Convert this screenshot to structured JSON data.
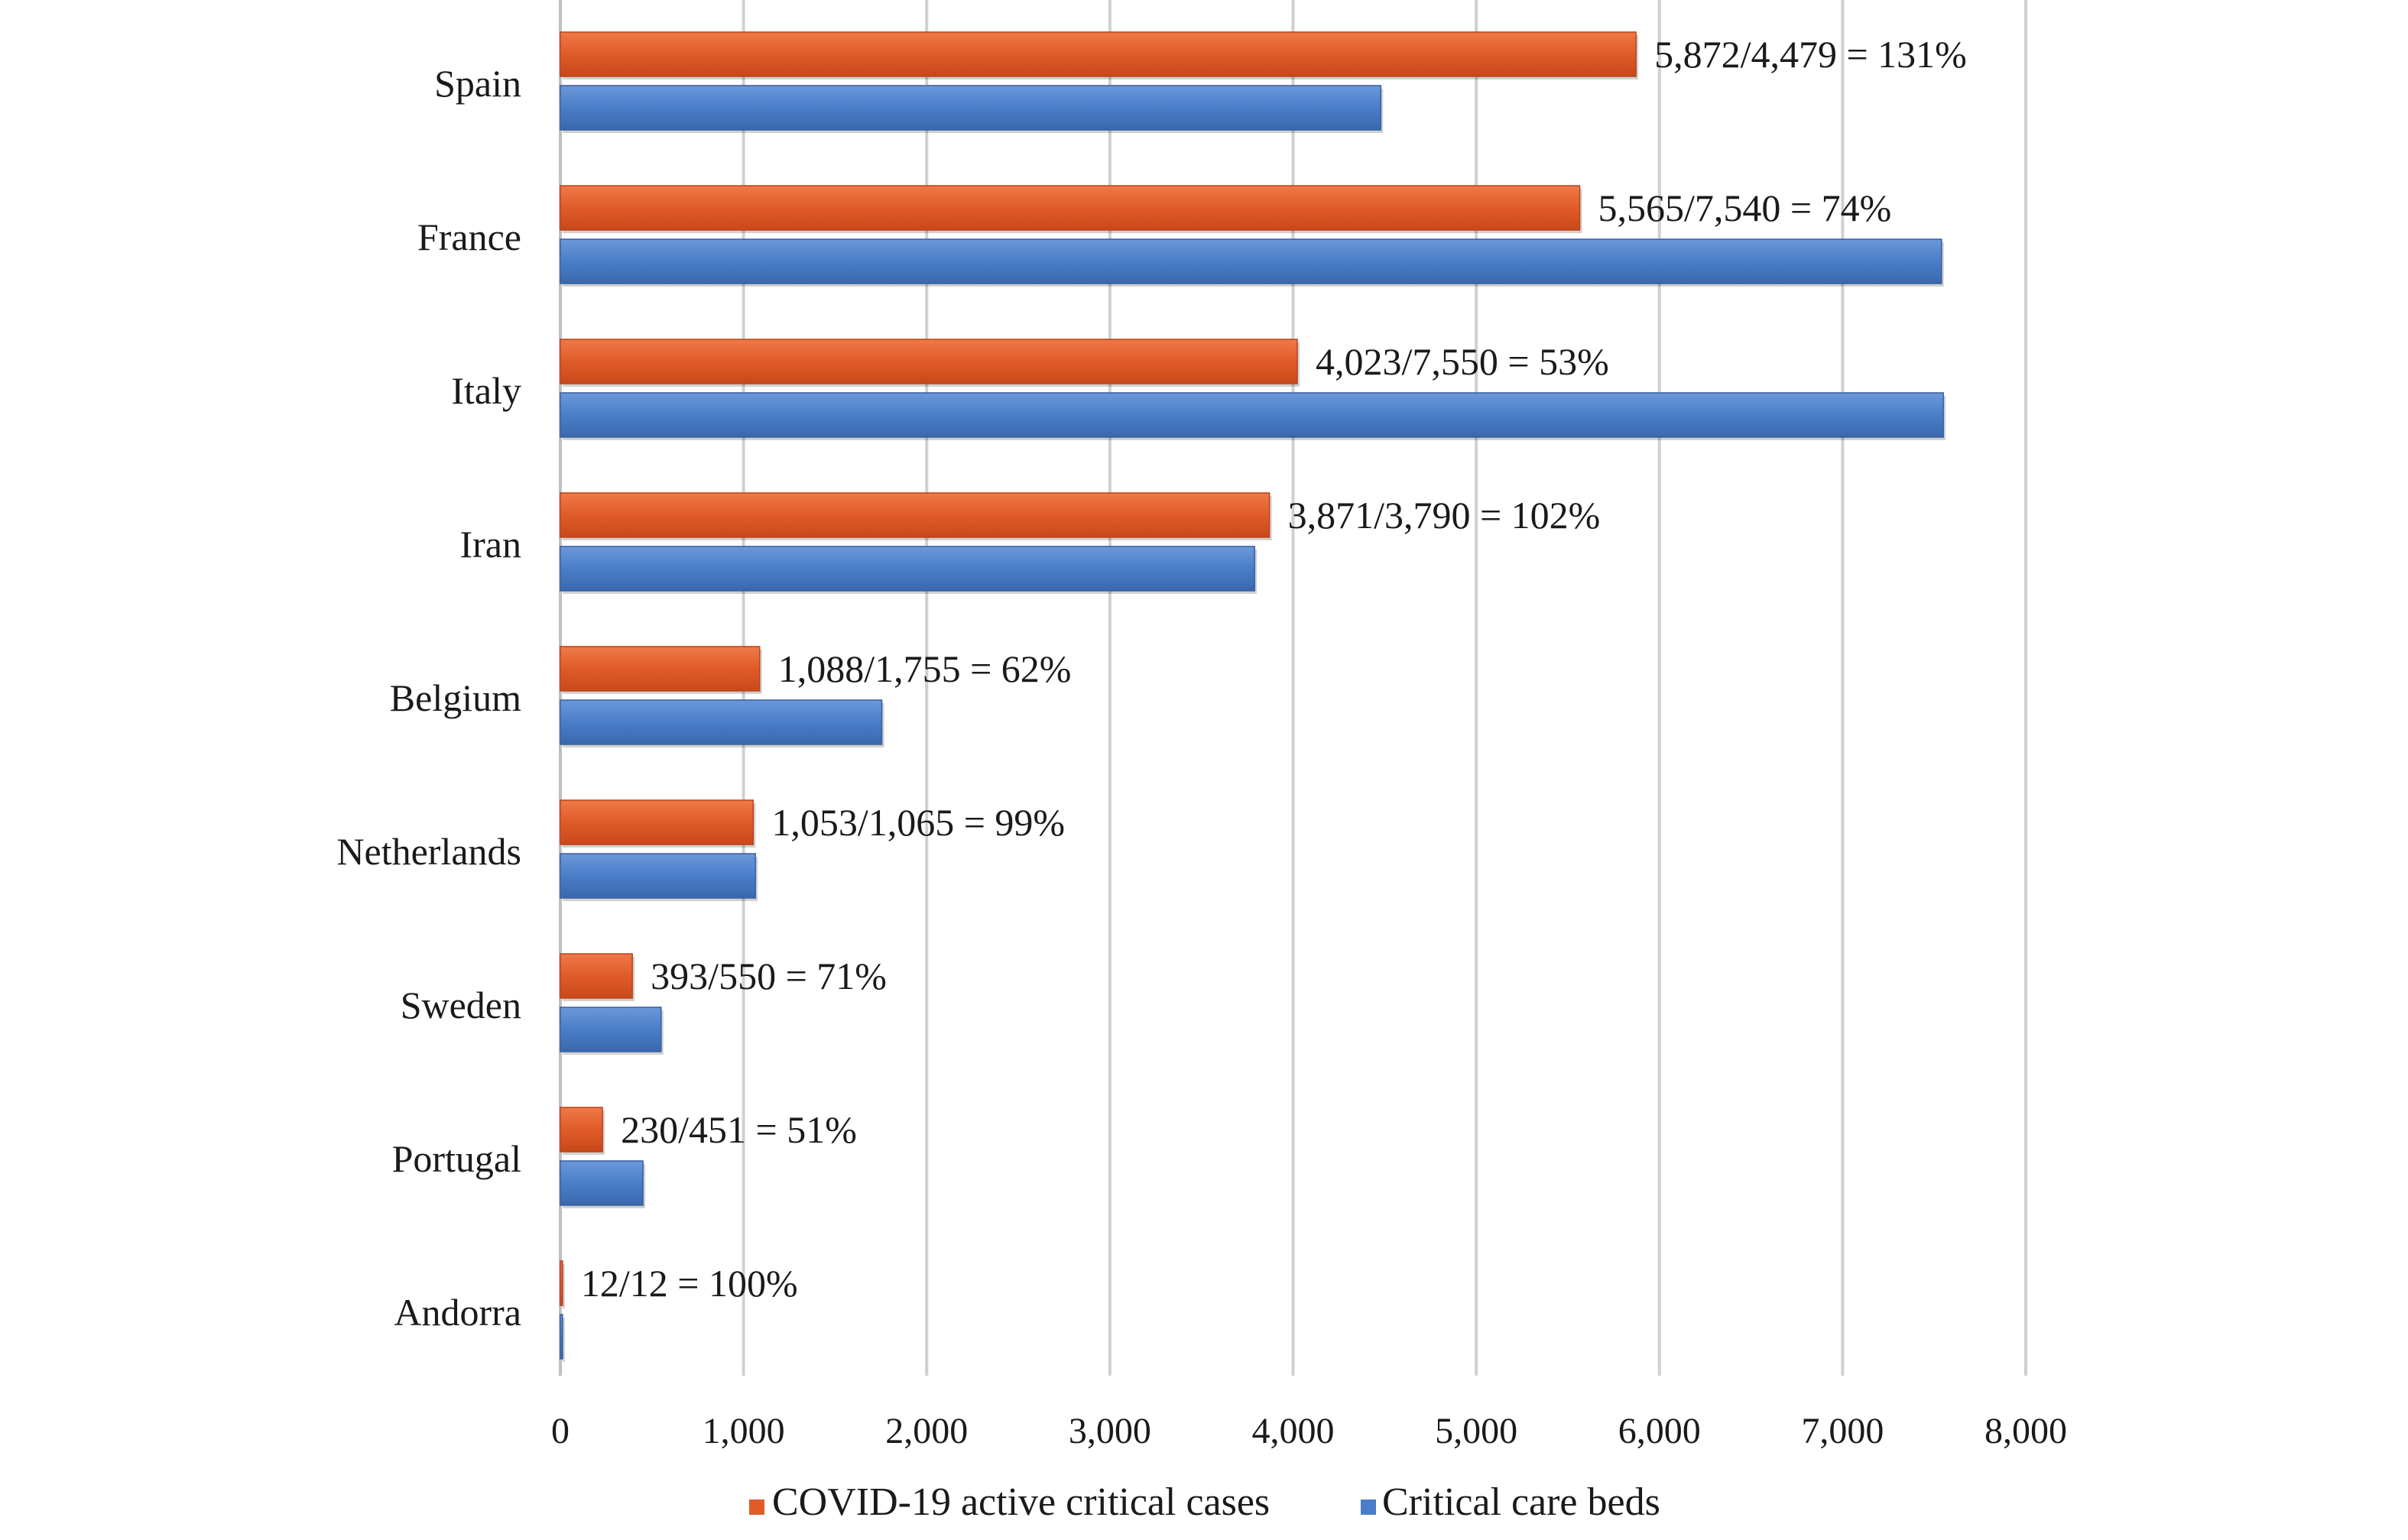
{
  "chart_data": {
    "type": "bar",
    "orientation": "horizontal",
    "categories": [
      "Spain",
      "France",
      "Italy",
      "Iran",
      "Belgium",
      "Netherlands",
      "Sweden",
      "Portugal",
      "Andorra"
    ],
    "series": [
      {
        "name": "COVID-19 active critical cases",
        "color": "#E15B29",
        "values": [
          5872,
          5565,
          4023,
          3871,
          1088,
          1053,
          393,
          230,
          12
        ]
      },
      {
        "name": "Critical care beds",
        "color": "#4A7EC9",
        "values": [
          4479,
          7540,
          7550,
          3790,
          1755,
          1065,
          550,
          451,
          12
        ]
      }
    ],
    "data_labels": [
      "5,872/4,479  = 131%",
      "5,565/7,540  = 74%",
      "4,023/7,550  = 53%",
      "3,871/3,790  = 102%",
      "1,088/1,755  = 62%",
      "1,053/1,065  = 99%",
      "393/550  = 71%",
      "230/451 = 51%",
      "12/12 = 100%"
    ],
    "x_ticks": [
      "0",
      "1,000",
      "2,000",
      "3,000",
      "4,000",
      "5,000",
      "6,000",
      "7,000",
      "8,000"
    ],
    "xlim": [
      0,
      8000
    ],
    "grid": "vertical",
    "legend_position": "bottom",
    "title": "",
    "xlabel": "",
    "ylabel": ""
  }
}
